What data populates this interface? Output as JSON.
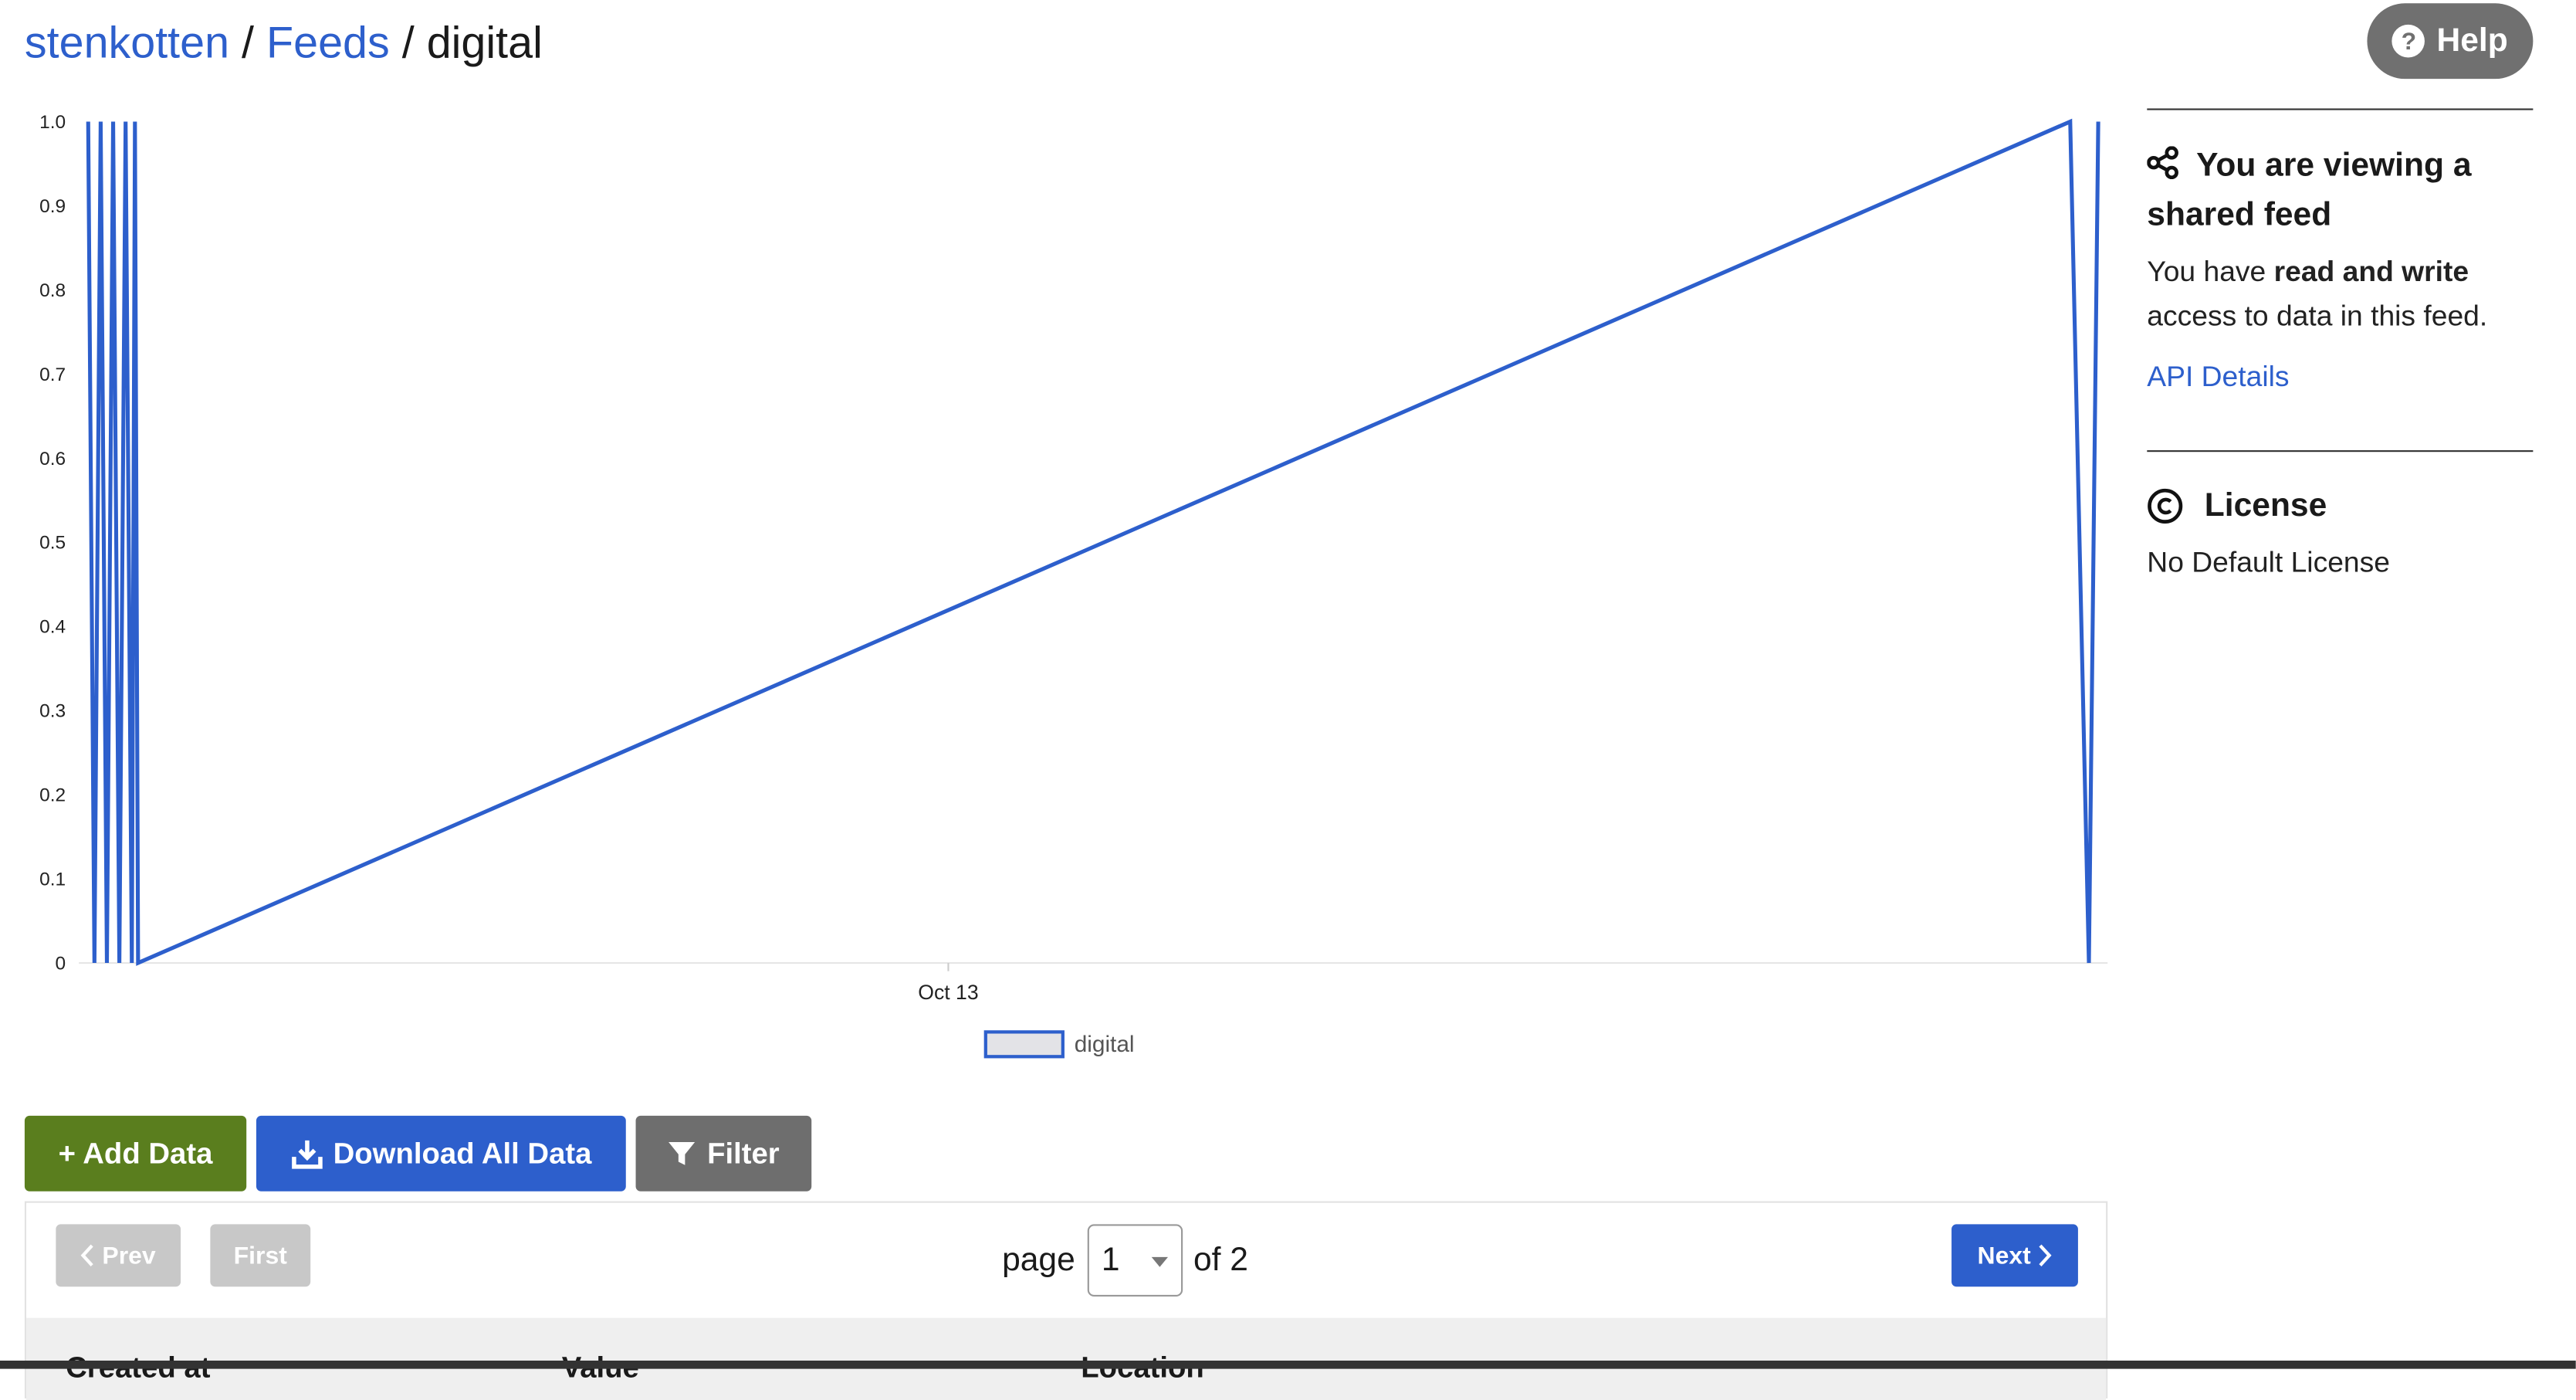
{
  "breadcrumb": {
    "user": "stenkotten",
    "separator": "/",
    "feeds": "Feeds",
    "current": "digital"
  },
  "help": {
    "label": "Help"
  },
  "chart_data": {
    "type": "line",
    "series": [
      {
        "name": "digital",
        "x": [
          "2021-10-09T04:00",
          "2021-10-09T04:40",
          "2021-10-09T05:20",
          "2021-10-09T06:00",
          "2021-10-09T06:40",
          "2021-10-09T07:20",
          "2021-10-09T08:00",
          "2021-10-09T08:40",
          "2021-10-09T09:00",
          "2021-10-09T09:20",
          "2021-10-18T00:00",
          "2021-10-18T02:00",
          "2021-10-18T03:00"
        ],
        "values": [
          1,
          0,
          1,
          0,
          1,
          0,
          1,
          0,
          1,
          0,
          1,
          0,
          1
        ]
      }
    ],
    "xlabel": "",
    "ylabel": "",
    "ylim": [
      0,
      1
    ],
    "yticks": [
      "0",
      "0.1",
      "0.2",
      "0.3",
      "0.4",
      "0.5",
      "0.6",
      "0.7",
      "0.8",
      "0.9",
      "1.0"
    ],
    "xticks": [
      "Oct 13"
    ],
    "legend": [
      "digital"
    ],
    "legend_position": "bottom-center",
    "color": "#2d5fcc",
    "grid": false
  },
  "sidebar": {
    "shared_title": "You are viewing a shared feed",
    "access_prefix": "You have",
    "access_bold": "read and write",
    "access_suffix": "access to data in this feed.",
    "api_link": "API Details",
    "license_title": "License",
    "license_value": "No Default License"
  },
  "actions": {
    "add_data": "+ Add Data",
    "download_all": "Download All Data",
    "filter": "Filter"
  },
  "pagination": {
    "prev": "Prev",
    "first": "First",
    "page_label": "page",
    "current_page": "1",
    "of_label": "of 2",
    "next": "Next"
  },
  "table": {
    "columns": [
      "Created at",
      "Value",
      "Location"
    ]
  }
}
